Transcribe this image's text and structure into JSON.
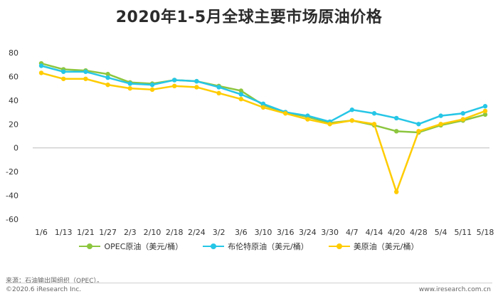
{
  "chart_data": {
    "type": "line",
    "title": "2020年1-5月全球主要市场原油价格",
    "categories": [
      "1/6",
      "1/13",
      "1/21",
      "1/27",
      "2/3",
      "2/10",
      "2/18",
      "2/24",
      "3/2",
      "3/6",
      "3/10",
      "3/16",
      "3/24",
      "3/30",
      "4/7",
      "4/14",
      "4/20",
      "4/28",
      "5/4",
      "5/11",
      "5/18"
    ],
    "series": [
      {
        "name": "OPEC原油（美元/桶）",
        "color": "#8cc63f",
        "values": [
          71,
          66,
          65,
          62,
          55,
          54,
          57,
          56,
          52,
          48,
          36,
          30,
          26,
          21,
          23,
          19,
          14,
          13,
          19,
          23,
          28
        ]
      },
      {
        "name": "布伦特原油（美元/桶）",
        "color": "#26c6e6",
        "values": [
          69,
          64,
          64,
          59,
          54,
          53,
          57,
          56,
          51,
          45,
          37,
          30,
          27,
          22,
          32,
          29,
          25,
          20,
          27,
          29,
          35
        ]
      },
      {
        "name": "美原油（美元/桶）",
        "color": "#ffcc00",
        "values": [
          63,
          58,
          58,
          53,
          50,
          49,
          52,
          51,
          46,
          41,
          34,
          29,
          24,
          20,
          23,
          20,
          -37,
          14,
          20,
          24,
          31
        ]
      }
    ],
    "ylim": [
      -60,
      80
    ],
    "yticks": [
      80,
      60,
      40,
      20,
      0,
      -20,
      -40,
      -60
    ],
    "grid": false,
    "legend": "bottom"
  },
  "footer": {
    "source": "来源：石油输出国组织（OPEC）。",
    "copyright": "©2020.6 iResearch Inc.",
    "website": "www.iresearch.com.cn"
  }
}
